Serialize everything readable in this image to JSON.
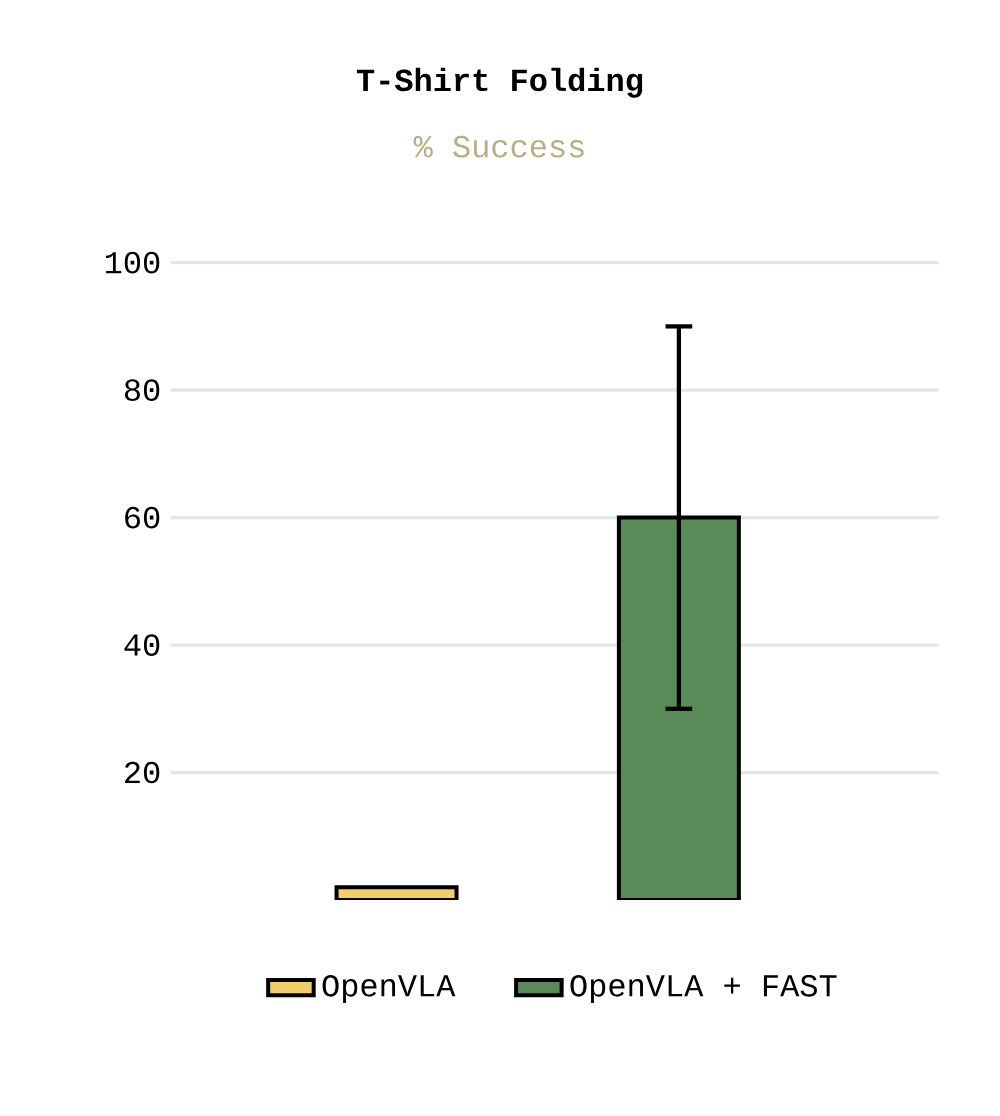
{
  "chart_data": {
    "type": "bar",
    "title": "T-Shirt Folding",
    "subtitle": "% Success",
    "categories": [
      null,
      null
    ],
    "series": [
      {
        "name": "OpenVLA",
        "color": "#f2cd6b",
        "values": [
          2,
          null
        ]
      },
      {
        "name": "OpenVLA + FAST",
        "color": "#5b8a5a",
        "values": [
          null,
          60
        ],
        "errors": [
          null,
          30
        ]
      }
    ],
    "ylim": [
      0,
      100
    ],
    "yticks": [
      20,
      40,
      60,
      80,
      100
    ],
    "grid": "y",
    "legend": "bottom"
  }
}
